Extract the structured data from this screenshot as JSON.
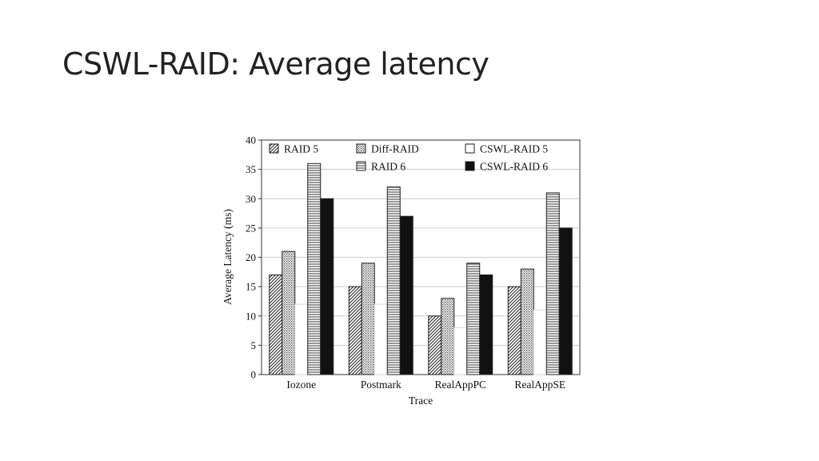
{
  "slide": {
    "title": "CSWL-RAID: Average latency"
  },
  "chart_data": {
    "type": "bar",
    "title": "",
    "xlabel": "Trace",
    "ylabel": "Average Latency (ms)",
    "ylim": [
      0,
      40
    ],
    "yticks": [
      0,
      5,
      10,
      15,
      20,
      25,
      30,
      35,
      40
    ],
    "grid": true,
    "legend_position": "top",
    "categories": [
      "Iozone",
      "Postmark",
      "RealAppPC",
      "RealAppSE"
    ],
    "series": [
      {
        "name": "RAID 5",
        "pattern": "diag",
        "values": [
          17,
          15,
          10,
          15
        ]
      },
      {
        "name": "Diff-RAID",
        "pattern": "dots",
        "values": [
          21,
          19,
          13,
          18
        ]
      },
      {
        "name": "CSWL-RAID 5",
        "pattern": "white",
        "values": [
          12,
          12,
          8,
          11
        ]
      },
      {
        "name": "RAID 6",
        "pattern": "hlines",
        "values": [
          36,
          32,
          19,
          31
        ]
      },
      {
        "name": "CSWL-RAID 6",
        "pattern": "black",
        "values": [
          30,
          27,
          17,
          25
        ]
      }
    ]
  }
}
